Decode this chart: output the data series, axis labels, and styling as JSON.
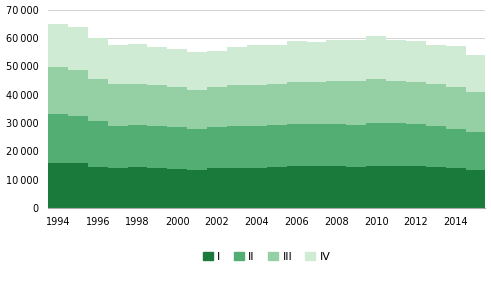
{
  "years": [
    1994,
    1995,
    1996,
    1997,
    1998,
    1999,
    2000,
    2001,
    2002,
    2003,
    2004,
    2005,
    2006,
    2007,
    2008,
    2009,
    2010,
    2011,
    2012,
    2013,
    2014,
    2015
  ],
  "Q1": [
    16100,
    15900,
    14600,
    14000,
    14500,
    14200,
    13900,
    13500,
    14000,
    14300,
    14100,
    14500,
    14800,
    14800,
    15000,
    14600,
    15000,
    15000,
    14800,
    14500,
    14000,
    13500
  ],
  "Q2": [
    17000,
    16500,
    16100,
    15000,
    14900,
    14900,
    14800,
    14400,
    14600,
    14700,
    14900,
    14700,
    14800,
    14800,
    14700,
    14800,
    15000,
    14900,
    14700,
    14400,
    14000,
    13400
  ],
  "Q3": [
    16800,
    16200,
    15000,
    14600,
    14500,
    14400,
    14000,
    13900,
    14000,
    14400,
    14500,
    14400,
    14700,
    14900,
    15000,
    15300,
    15400,
    15000,
    14900,
    14700,
    14700,
    13900
  ],
  "Q4": [
    15100,
    15400,
    14300,
    13900,
    13800,
    13400,
    13300,
    13400,
    12900,
    13400,
    13900,
    13900,
    14500,
    14200,
    14500,
    14700,
    15300,
    14500,
    14400,
    13900,
    14400,
    13200
  ],
  "color_Q1": "#1a7a3c",
  "color_Q2": "#52ae72",
  "color_Q3": "#95d0a4",
  "color_Q4": "#d0ebd4",
  "ylim": [
    0,
    70000
  ],
  "yticks": [
    0,
    10000,
    20000,
    30000,
    40000,
    50000,
    60000,
    70000
  ],
  "background_color": "#ffffff",
  "grid_color": "#cccccc",
  "legend_labels": [
    "I",
    "II",
    "III",
    "IV"
  ]
}
